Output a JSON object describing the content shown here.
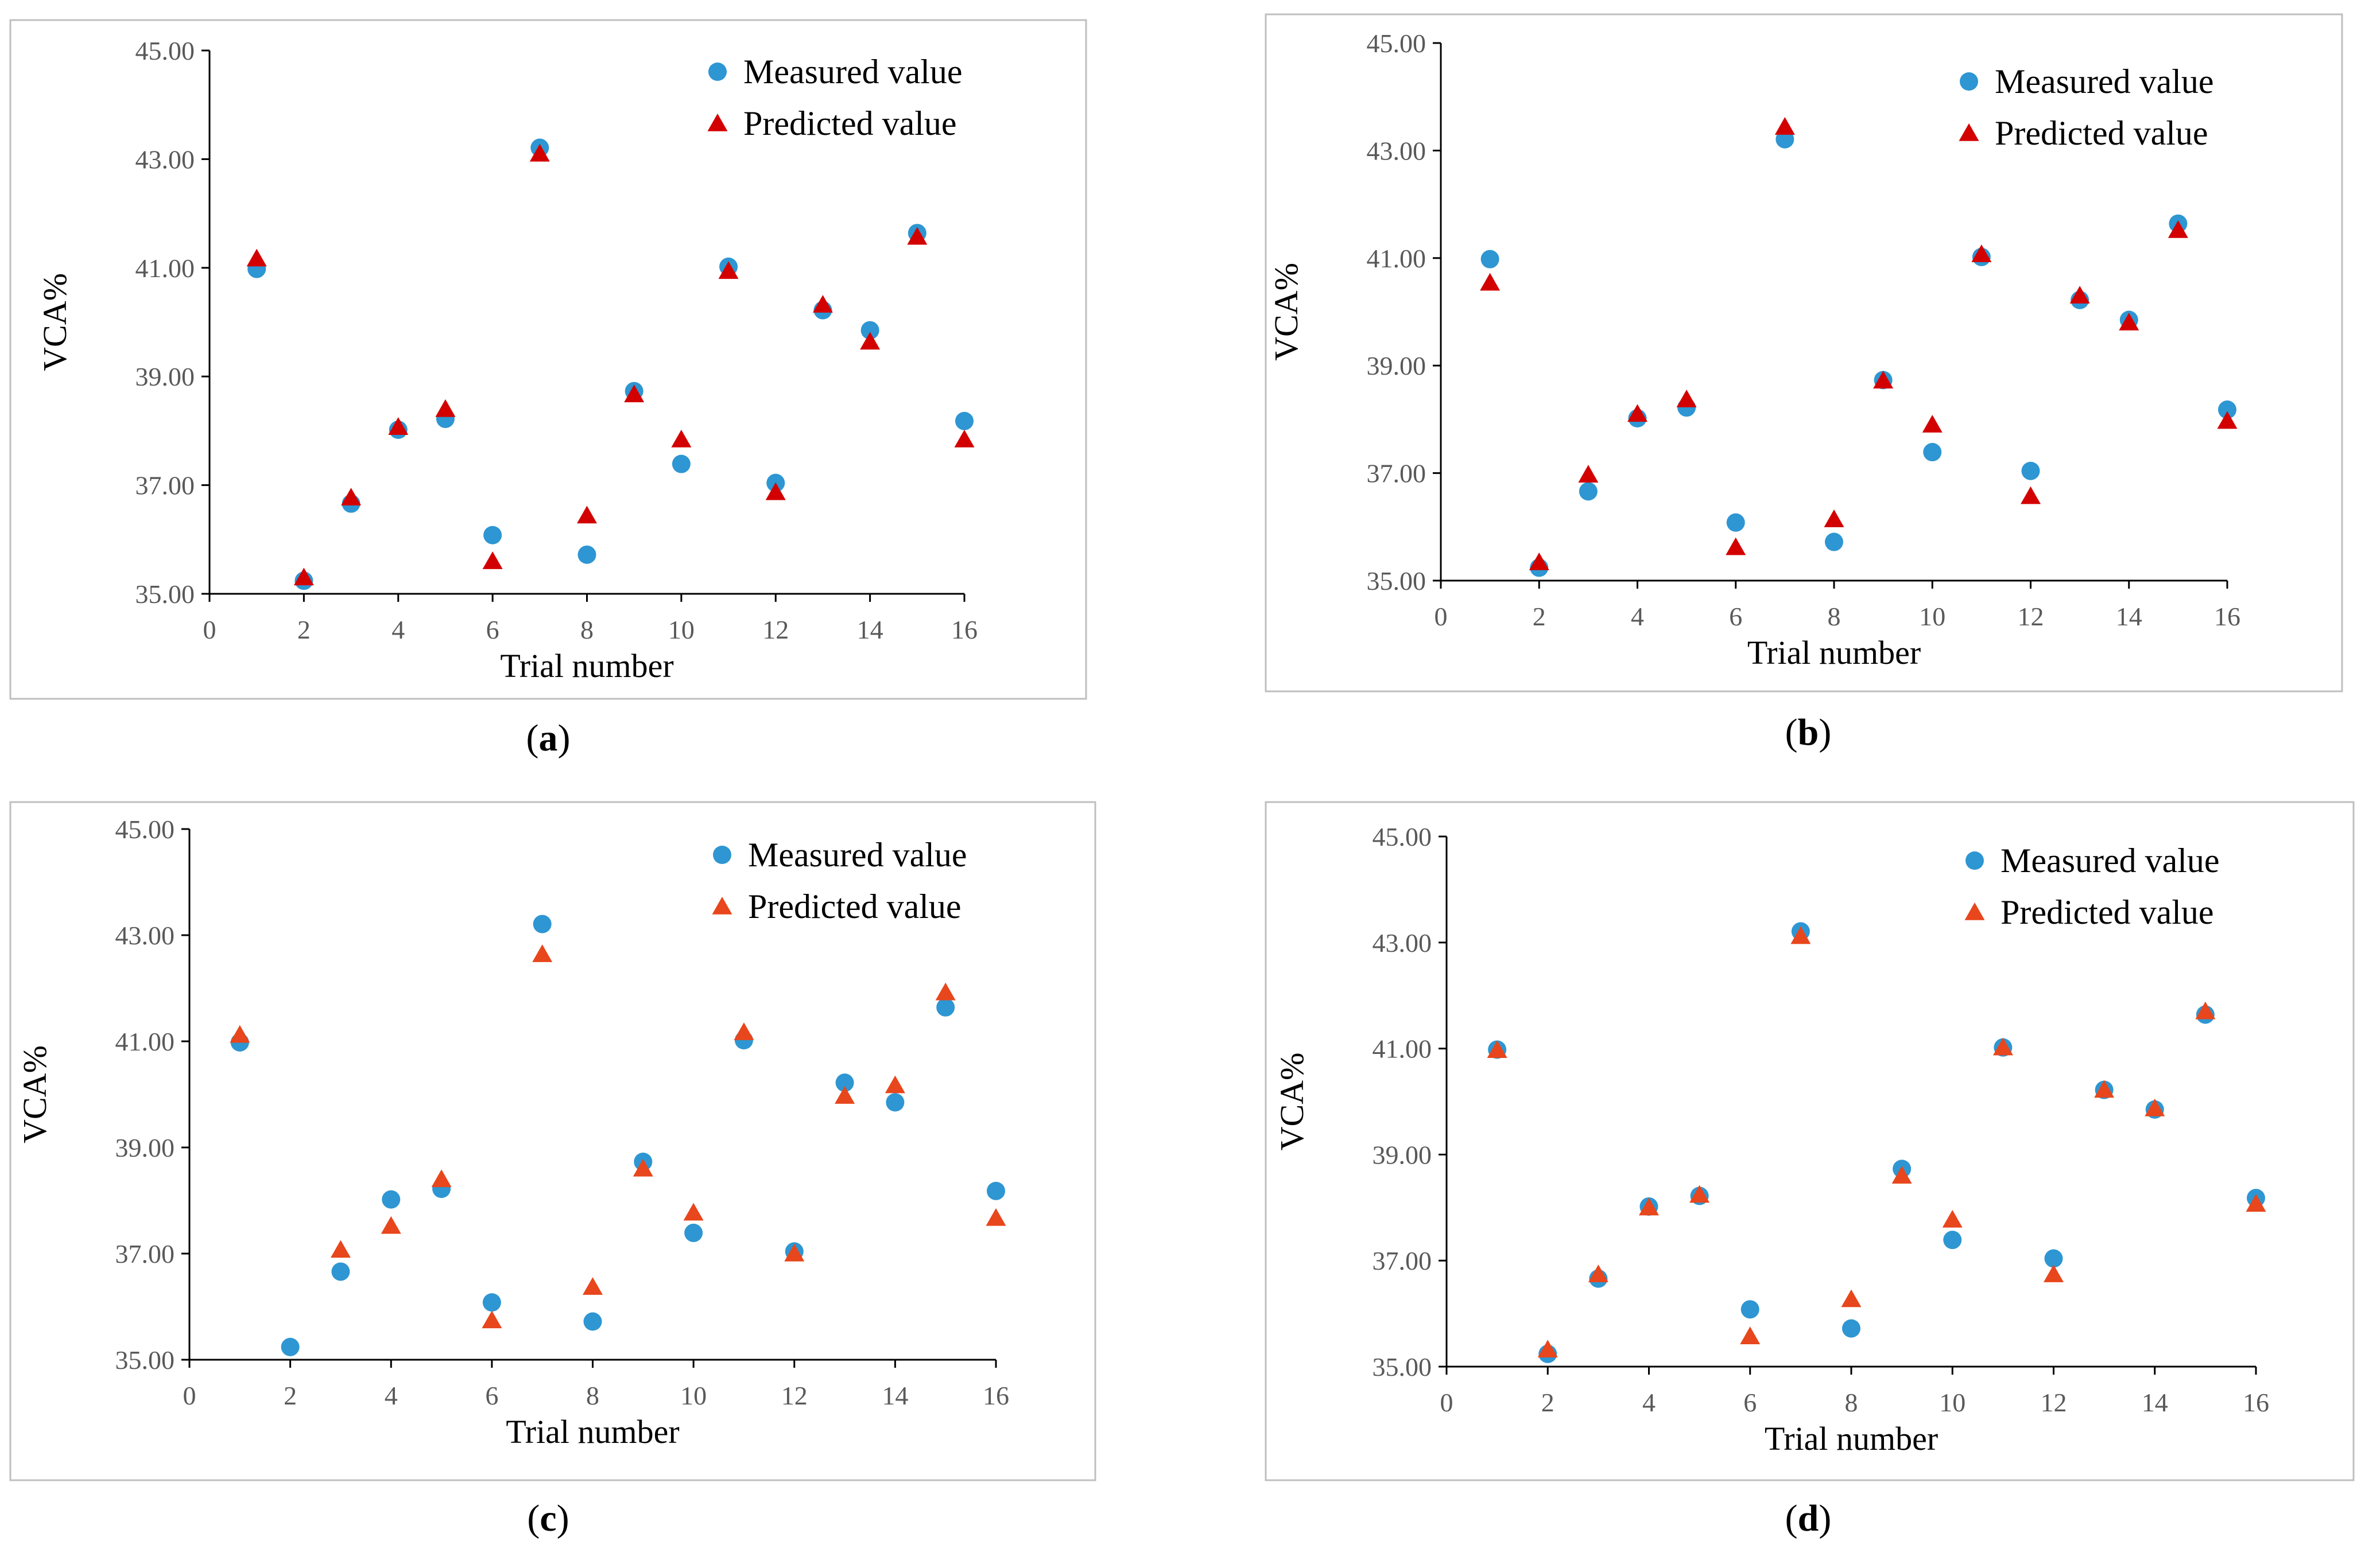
{
  "colors": {
    "measured": "#2e96d2",
    "predicted": "#d30000",
    "predicted_light": "#e8461c",
    "axis": "#000000",
    "frame": "#bfbfbf"
  },
  "chart_data": [
    {
      "type": "scatter",
      "panel": "a",
      "caption": "a",
      "xlabel": "Trial number",
      "ylabel": "VCA%",
      "xlim": [
        0,
        16
      ],
      "ylim": [
        35,
        45
      ],
      "xticks": [
        "0",
        "2",
        "4",
        "6",
        "8",
        "10",
        "12",
        "14",
        "16"
      ],
      "yticks": [
        "35.00",
        "37.00",
        "39.00",
        "41.00",
        "43.00",
        "45.00"
      ],
      "legend": {
        "measured": "Measured value",
        "predicted": "Predicted value",
        "placement": "top-right"
      },
      "x": [
        1,
        2,
        3,
        4,
        5,
        6,
        7,
        8,
        9,
        10,
        11,
        12,
        13,
        14,
        15,
        16
      ],
      "series": [
        {
          "name": "Measured value",
          "marker": "circle",
          "values": [
            40.98,
            35.24,
            36.66,
            38.02,
            38.22,
            36.08,
            43.21,
            35.72,
            38.73,
            37.39,
            41.02,
            37.04,
            40.22,
            39.85,
            41.64,
            38.18
          ]
        },
        {
          "name": "Predicted value",
          "marker": "triangle",
          "values": [
            41.15,
            35.28,
            36.75,
            38.05,
            38.38,
            35.58,
            43.08,
            36.42,
            38.65,
            37.82,
            40.92,
            36.85,
            40.3,
            39.62,
            41.55,
            37.82
          ]
        }
      ]
    },
    {
      "type": "scatter",
      "panel": "b",
      "caption": "b",
      "xlabel": "Trial number",
      "ylabel": "VCA%",
      "xlim": [
        0,
        16
      ],
      "ylim": [
        35,
        45
      ],
      "xticks": [
        "0",
        "2",
        "4",
        "6",
        "8",
        "10",
        "12",
        "14",
        "16"
      ],
      "yticks": [
        "35.00",
        "37.00",
        "39.00",
        "41.00",
        "43.00",
        "45.00"
      ],
      "legend": {
        "measured": "Measured value",
        "predicted": "Predicted value",
        "placement": "top-right"
      },
      "x": [
        1,
        2,
        3,
        4,
        5,
        6,
        7,
        8,
        9,
        10,
        11,
        12,
        13,
        14,
        15,
        16
      ],
      "series": [
        {
          "name": "Measured value",
          "marker": "circle",
          "values": [
            40.98,
            35.24,
            36.66,
            38.02,
            38.22,
            36.08,
            43.21,
            35.72,
            38.73,
            37.39,
            41.02,
            37.04,
            40.22,
            39.85,
            41.64,
            38.18
          ]
        },
        {
          "name": "Predicted value",
          "marker": "triangle",
          "values": [
            40.52,
            35.32,
            36.95,
            38.08,
            38.35,
            35.6,
            43.42,
            36.12,
            38.7,
            37.88,
            41.05,
            36.55,
            40.28,
            39.78,
            41.5,
            37.95
          ]
        }
      ]
    },
    {
      "type": "scatter",
      "panel": "c",
      "caption": "c",
      "xlabel": "Trial number",
      "ylabel": "VCA%",
      "xlim": [
        0,
        16
      ],
      "ylim": [
        35,
        45
      ],
      "xticks": [
        "0",
        "2",
        "4",
        "6",
        "8",
        "10",
        "12",
        "14",
        "16"
      ],
      "yticks": [
        "35.00",
        "37.00",
        "39.00",
        "41.00",
        "43.00",
        "45.00"
      ],
      "legend": {
        "measured": "Measured value",
        "predicted": "Predicted value",
        "placement": "top-right"
      },
      "x": [
        1,
        2,
        3,
        4,
        5,
        6,
        7,
        8,
        9,
        10,
        11,
        12,
        13,
        14,
        15,
        16
      ],
      "series": [
        {
          "name": "Measured value",
          "marker": "circle",
          "values": [
            40.98,
            35.24,
            36.66,
            38.02,
            38.22,
            36.08,
            43.21,
            35.72,
            38.73,
            37.39,
            41.02,
            37.04,
            40.22,
            39.85,
            41.64,
            38.18
          ]
        },
        {
          "name": "Predicted value",
          "marker": "triangle",
          "values": [
            41.1,
            null,
            37.05,
            37.5,
            38.38,
            35.72,
            42.62,
            36.35,
            38.58,
            37.75,
            41.15,
            36.98,
            39.95,
            40.15,
            41.9,
            37.65
          ]
        }
      ]
    },
    {
      "type": "scatter",
      "panel": "d",
      "caption": "d",
      "xlabel": "Trial number",
      "ylabel": "VCA%",
      "xlim": [
        0,
        16
      ],
      "ylim": [
        35,
        45
      ],
      "xticks": [
        "0",
        "2",
        "4",
        "6",
        "8",
        "10",
        "12",
        "14",
        "16"
      ],
      "yticks": [
        "35.00",
        "37.00",
        "39.00",
        "41.00",
        "43.00",
        "45.00"
      ],
      "legend": {
        "measured": "Measured value",
        "predicted": "Predicted value",
        "placement": "top-right"
      },
      "x": [
        1,
        2,
        3,
        4,
        5,
        6,
        7,
        8,
        9,
        10,
        11,
        12,
        13,
        14,
        15,
        16
      ],
      "series": [
        {
          "name": "Measured value",
          "marker": "circle",
          "values": [
            40.98,
            35.24,
            36.66,
            38.02,
            38.22,
            36.08,
            43.21,
            35.72,
            38.73,
            37.39,
            41.02,
            37.04,
            40.22,
            39.85,
            41.64,
            38.18
          ]
        },
        {
          "name": "Predicted value",
          "marker": "triangle",
          "values": [
            40.95,
            35.3,
            36.72,
            37.98,
            38.22,
            35.55,
            43.1,
            36.25,
            38.58,
            37.75,
            41.0,
            36.72,
            40.2,
            39.85,
            41.68,
            38.05
          ]
        }
      ]
    }
  ]
}
